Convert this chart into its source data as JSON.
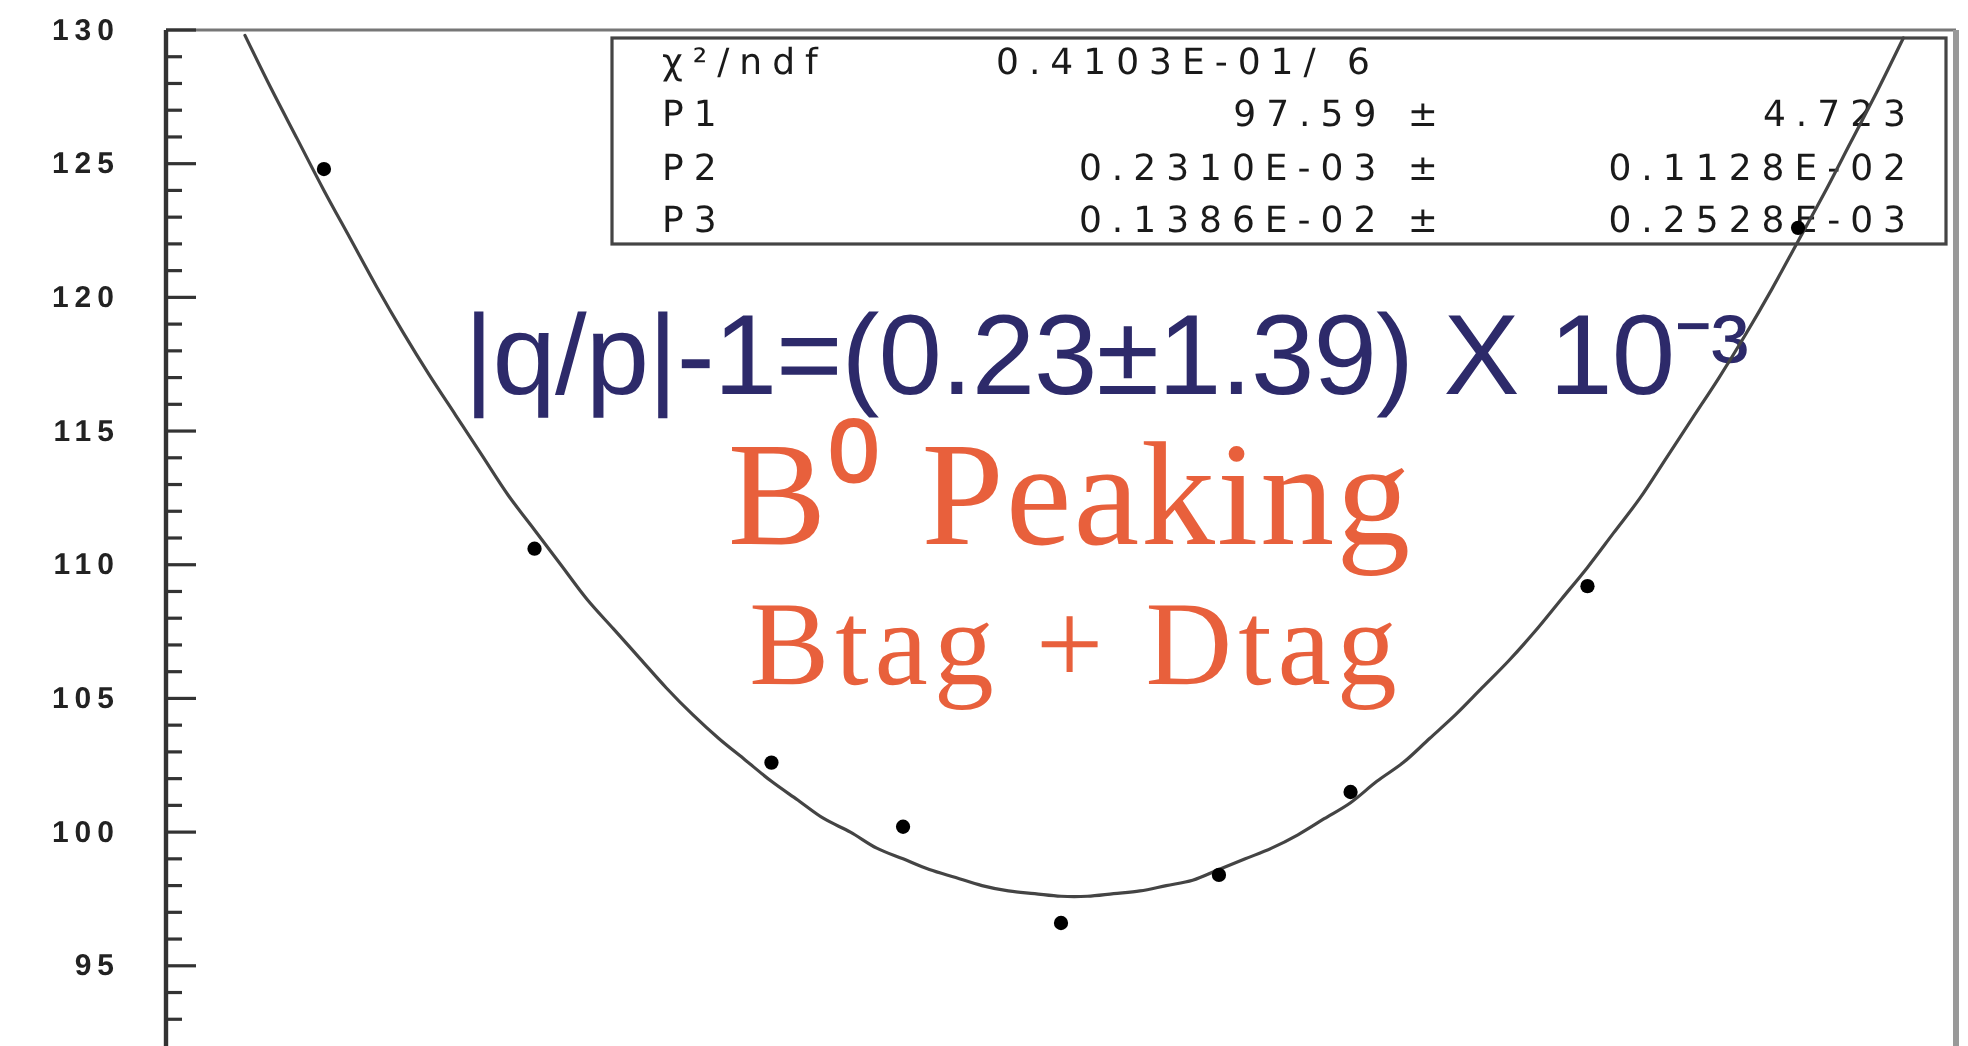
{
  "chart_data": {
    "type": "scatter",
    "title": "B⁰ Peaking",
    "subtitle": "Btag + Dtag",
    "annotations": [
      "|q/p|-1=(0.23±1.39) X 10⁻³",
      "χ²/ndf",
      "0.4103E-01/ 6",
      "P1",
      "97.59 ±",
      "4.723",
      "P2",
      "0.2310E-03 ±",
      "0.1128E-02",
      "P3",
      "0.1386E-02 ±",
      "0.2528E-03"
    ],
    "categories": [
      null,
      null,
      null,
      null,
      null,
      null,
      null,
      null,
      null,
      null,
      null,
      null,
      null,
      null,
      null,
      null,
      null,
      null,
      null,
      null,
      null,
      null,
      null,
      null,
      null,
      null,
      null,
      null,
      null,
      null,
      null,
      null,
      null,
      null,
      null,
      null,
      null,
      null,
      null,
      null,
      null,
      null,
      null,
      null,
      null,
      null,
      null,
      null,
      null,
      null,
      null,
      null,
      null,
      null,
      null,
      null,
      null,
      null,
      null,
      null,
      null,
      null,
      null,
      null,
      null,
      null,
      null,
      null,
      null
    ],
    "series": [
      {
        "color": "#000000",
        "marker": "circle",
        "values": [
          null,
          null,
          null,
          null,
          null,
          null,
          124.8,
          null,
          null,
          null,
          null,
          null,
          null,
          null,
          110.6,
          null,
          null,
          null,
          null,
          null,
          null,
          null,
          null,
          102.6,
          null,
          null,
          null,
          null,
          100.2,
          null,
          null,
          null,
          null,
          null,
          96.6,
          null,
          null,
          null,
          null,
          null,
          98.4,
          null,
          null,
          null,
          null,
          101.5,
          null,
          null,
          null,
          null,
          null,
          null,
          null,
          null,
          109.2,
          null,
          null,
          null,
          null,
          null,
          null,
          null,
          122.6,
          null,
          null,
          null,
          null,
          null,
          null
        ]
      },
      {
        "type": "line",
        "color": "#444444",
        "values": [
          null,
          null,
          null,
          129.8,
          127.8,
          125.9,
          124.0,
          122.2,
          120.4,
          118.7,
          117.1,
          115.6,
          114.1,
          112.6,
          111.3,
          110.0,
          108.7,
          107.6,
          106.5,
          105.4,
          104.4,
          103.5,
          102.7,
          101.9,
          101.2,
          100.5,
          100.0,
          99.4,
          99.0,
          98.6,
          98.3,
          98.0,
          97.8,
          97.7,
          97.6,
          97.6,
          97.7,
          97.8,
          98.0,
          98.2,
          98.6,
          99.0,
          99.4,
          99.9,
          100.5,
          101.1,
          101.9,
          102.6,
          103.5,
          104.4,
          105.4,
          106.4,
          107.5,
          108.7,
          109.9,
          111.2,
          112.5,
          114.0,
          115.5,
          117.0,
          118.6,
          120.3,
          122.1,
          123.9,
          125.8,
          127.7,
          129.7,
          null,
          null
        ]
      }
    ],
    "tick_labels": "y",
    "ylim": [
      92,
      130
    ],
    "yticks": [
      {
        "value": 93,
        "label": null
      },
      {
        "value": 94,
        "label": null
      },
      95,
      {
        "value": 96,
        "label": null
      },
      {
        "value": 97,
        "label": null
      },
      {
        "value": 98,
        "label": null
      },
      {
        "value": 99,
        "label": null
      },
      100,
      {
        "value": 101,
        "label": null
      },
      {
        "value": 102,
        "label": null
      },
      {
        "value": 103,
        "label": null
      },
      {
        "value": 104,
        "label": null
      },
      105,
      {
        "value": 106,
        "label": null
      },
      {
        "value": 107,
        "label": null
      },
      {
        "value": 108,
        "label": null
      },
      {
        "value": 109,
        "label": null
      },
      110,
      {
        "value": 111,
        "label": null
      },
      {
        "value": 112,
        "label": null
      },
      {
        "value": 113,
        "label": null
      },
      {
        "value": 114,
        "label": null
      },
      115,
      {
        "value": 116,
        "label": null
      },
      {
        "value": 117,
        "label": null
      },
      {
        "value": 118,
        "label": null
      },
      {
        "value": 119,
        "label": null
      },
      120,
      {
        "value": 121,
        "label": null
      },
      {
        "value": 122,
        "label": null
      },
      {
        "value": 123,
        "label": null
      },
      {
        "value": 124,
        "label": null
      },
      125,
      {
        "value": 126,
        "label": null
      },
      {
        "value": 127,
        "label": null
      },
      {
        "value": 128,
        "label": null
      },
      {
        "value": 129,
        "label": null
      },
      130
    ]
  }
}
